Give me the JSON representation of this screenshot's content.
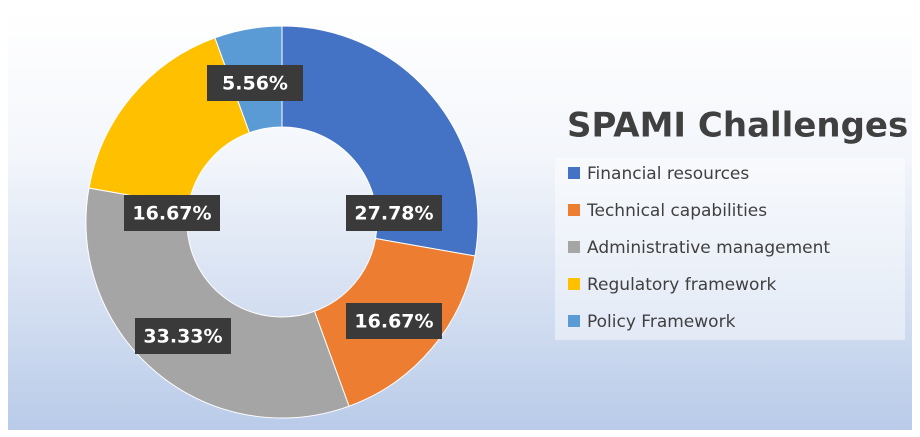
{
  "chart_data": {
    "type": "donut",
    "title": "SPAMI Challenges",
    "categories": [
      "Financial resources",
      "Technical capabilities",
      "Administrative management",
      "Regulatory framework",
      "Policy Framework"
    ],
    "values": [
      27.78,
      16.67,
      33.33,
      16.67,
      5.56
    ],
    "value_labels": [
      "27.78%",
      "16.67%",
      "33.33%",
      "16.67%",
      "5.56%"
    ],
    "colors": [
      "#4472c4",
      "#ed7d31",
      "#a5a5a5",
      "#ffc000",
      "#5b9bd5"
    ],
    "legend": "right"
  }
}
